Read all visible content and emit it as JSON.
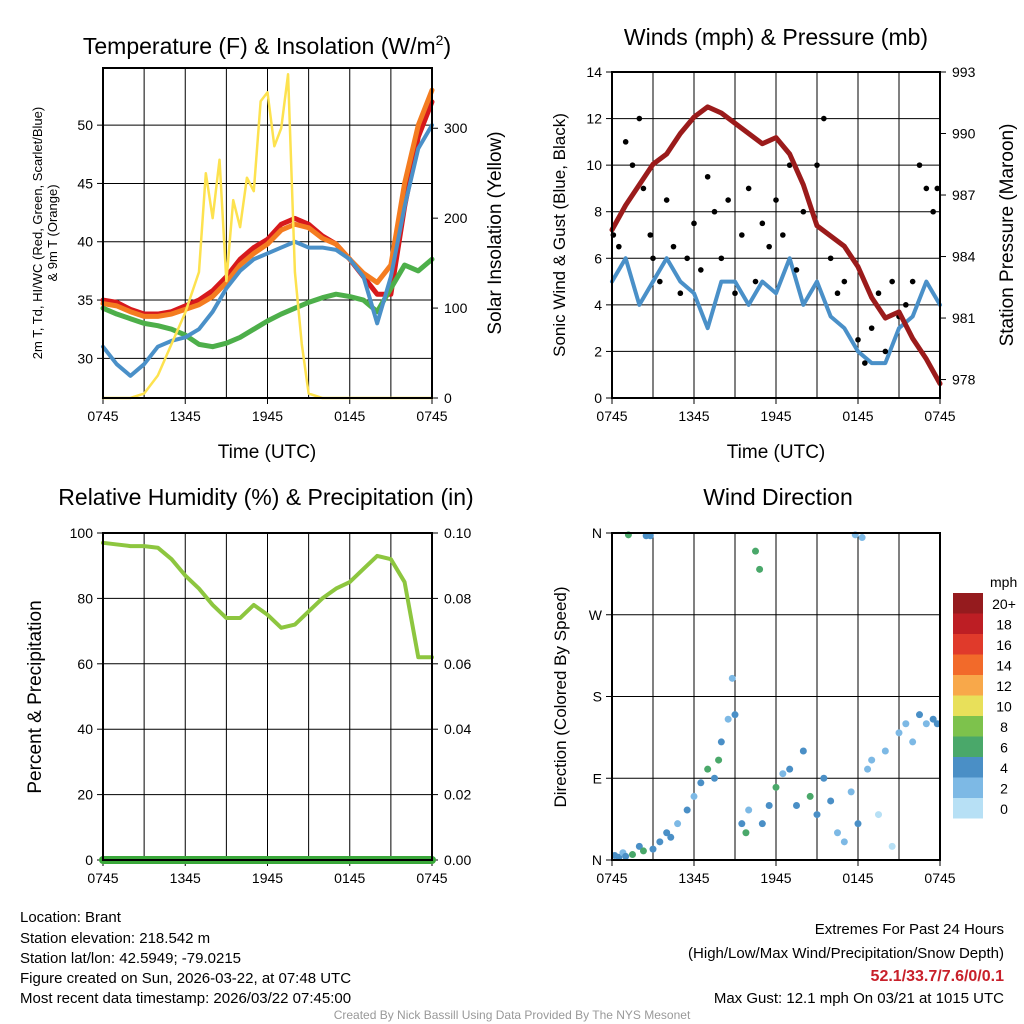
{
  "colors": {
    "red": "#d7191c",
    "orange": "#f47c20",
    "green": "#4daf4a",
    "blue": "#4a90c8",
    "yellow": "#fde24f",
    "maroon": "#9b1b1b",
    "rh": "#8dc63f",
    "precip": "#3aa83a"
  },
  "chart_data": [
    {
      "type": "line",
      "title": "Temperature (F) & Insolation (W/m²)",
      "title_main": "Temperature (F) & Insolation (W/m",
      "title_sup": "2",
      "title_end": ")",
      "xlabel": "Time (UTC)",
      "ylabel_line1": "2m T, Td, HI/WC (Red, Green, Scarlet/Blue)",
      "ylabel_line2": "& 9m T (Orange)",
      "y2label": "Solar Insolation (Yellow)",
      "xticks": [
        "0745",
        "1345",
        "1945",
        "0145",
        "0745"
      ],
      "xlim_hours": [
        0,
        24
      ],
      "ylim": [
        26.6,
        54.9
      ],
      "yticks": [
        30,
        35,
        40,
        45,
        50
      ],
      "y2lim": [
        0,
        367
      ],
      "y2ticks": [
        0,
        100,
        200,
        300
      ],
      "series": [
        {
          "name": "2m T",
          "color": "red",
          "values": [
            35,
            34.8,
            34.2,
            33.8,
            33.8,
            34,
            34.5,
            35,
            35.8,
            37,
            38.5,
            39.5,
            40.2,
            41.5,
            42,
            41.5,
            40.5,
            39.8,
            38.5,
            37,
            35.5,
            35.5,
            43,
            49,
            52
          ]
        },
        {
          "name": "9m T",
          "color": "orange",
          "values": [
            34.7,
            34.5,
            34,
            33.6,
            33.6,
            33.8,
            34.2,
            34.6,
            35.3,
            36.5,
            38,
            39,
            39.8,
            41,
            41.5,
            41.2,
            40.3,
            39.8,
            38.5,
            37.3,
            36.5,
            38,
            45,
            50,
            53
          ]
        },
        {
          "name": "Td",
          "color": "green",
          "values": [
            34.3,
            33.8,
            33.4,
            33,
            32.8,
            32.5,
            32,
            31.2,
            31,
            31.3,
            31.8,
            32.5,
            33.2,
            33.8,
            34.3,
            34.8,
            35.2,
            35.5,
            35.3,
            35,
            34,
            36,
            38,
            37.5,
            38.5
          ]
        },
        {
          "name": "WC",
          "color": "blue",
          "values": [
            31,
            29.5,
            28.5,
            29.5,
            31,
            31.5,
            31.8,
            32.5,
            34,
            36,
            37.5,
            38.5,
            39,
            39.5,
            40,
            39.5,
            39.5,
            39.3,
            38.5,
            37,
            33,
            37,
            43,
            48,
            50
          ]
        },
        {
          "name": "Solar",
          "color": "yellow",
          "axis": "right",
          "x": [
            0,
            2,
            3,
            4,
            5,
            6,
            7,
            7.5,
            8,
            8.5,
            9,
            9.5,
            10,
            10.5,
            11,
            11.5,
            12,
            12.5,
            13,
            13.5,
            14,
            14.5,
            15,
            16,
            24
          ],
          "values": [
            0,
            0,
            5,
            25,
            60,
            95,
            140,
            250,
            200,
            265,
            130,
            220,
            190,
            245,
            230,
            330,
            340,
            280,
            300,
            360,
            140,
            60,
            5,
            0,
            0
          ]
        }
      ]
    },
    {
      "type": "line",
      "title": "Winds (mph) & Pressure (mb)",
      "xlabel": "Time (UTC)",
      "ylabel": "Sonic Wind & Gust (Blue, Black)",
      "y2label": "Station Pressure (Maroon)",
      "xticks": [
        "0745",
        "1345",
        "1945",
        "0145",
        "0745"
      ],
      "ylim": [
        0,
        14
      ],
      "yticks": [
        0,
        2,
        4,
        6,
        8,
        10,
        12,
        14
      ],
      "y2lim": [
        977.1,
        993
      ],
      "y2ticks": [
        978,
        981,
        984,
        987,
        990,
        993
      ],
      "pressure": [
        985.3,
        986.5,
        987.5,
        988.5,
        989,
        990,
        990.8,
        991.3,
        991,
        990.5,
        990,
        989.5,
        989.8,
        989,
        987.5,
        985.5,
        985,
        984.5,
        983.5,
        982,
        981,
        981.3,
        980,
        979,
        977.8
      ],
      "wind": [
        5,
        6,
        4,
        5,
        6,
        5,
        4.5,
        3,
        5,
        5,
        4,
        5,
        4.5,
        6,
        4,
        5,
        3.5,
        3,
        2,
        1.5,
        1.5,
        3,
        3.5,
        5,
        4
      ],
      "gusts": [
        [
          0.1,
          7
        ],
        [
          0.5,
          6.5
        ],
        [
          1,
          11
        ],
        [
          1.5,
          10
        ],
        [
          2,
          12
        ],
        [
          2.3,
          9
        ],
        [
          2.8,
          7
        ],
        [
          3,
          6
        ],
        [
          3.5,
          5
        ],
        [
          4,
          8.5
        ],
        [
          4.5,
          6.5
        ],
        [
          5,
          4.5
        ],
        [
          5.5,
          6
        ],
        [
          6,
          7.5
        ],
        [
          6.5,
          5.5
        ],
        [
          7,
          9.5
        ],
        [
          7.5,
          8
        ],
        [
          8,
          6
        ],
        [
          8.5,
          8.5
        ],
        [
          9,
          4.5
        ],
        [
          9.5,
          7
        ],
        [
          10,
          9
        ],
        [
          10.5,
          5
        ],
        [
          11,
          7.5
        ],
        [
          11.5,
          6.5
        ],
        [
          12,
          8.5
        ],
        [
          12.5,
          7
        ],
        [
          13,
          10
        ],
        [
          13.5,
          5.5
        ],
        [
          14,
          8
        ],
        [
          15,
          10
        ],
        [
          15.5,
          12
        ],
        [
          16,
          6
        ],
        [
          16.5,
          4.5
        ],
        [
          17,
          5
        ],
        [
          18,
          2.5
        ],
        [
          18.5,
          1.5
        ],
        [
          19,
          3
        ],
        [
          19.5,
          4.5
        ],
        [
          20,
          2
        ],
        [
          20.5,
          5
        ],
        [
          21,
          3.5
        ],
        [
          21.5,
          4
        ],
        [
          22,
          5
        ],
        [
          22.5,
          10
        ],
        [
          23,
          9
        ],
        [
          23.5,
          8
        ],
        [
          23.8,
          9
        ]
      ]
    },
    {
      "type": "line",
      "title": "Relative Humidity (%) & Precipitation (in)",
      "ylabel": "Percent & Precipitation",
      "xticks": [
        "0745",
        "1345",
        "1945",
        "0145",
        "0745"
      ],
      "ylim": [
        0,
        100
      ],
      "yticks": [
        0,
        20,
        40,
        60,
        80,
        100
      ],
      "y2lim": [
        0,
        0.1
      ],
      "y2ticks": [
        "0.00",
        "0.02",
        "0.04",
        "0.06",
        "0.08",
        "0.10"
      ],
      "rh": [
        97,
        96.5,
        96,
        96,
        95.5,
        92,
        87,
        83,
        78,
        74,
        74,
        78,
        75,
        71,
        72,
        76,
        80,
        83,
        85,
        89,
        93,
        92,
        85,
        62,
        62
      ],
      "precip": [
        0,
        0,
        0,
        0,
        0,
        0,
        0,
        0,
        0,
        0,
        0,
        0,
        0,
        0,
        0,
        0,
        0,
        0,
        0,
        0,
        0,
        0,
        0,
        0,
        0
      ]
    },
    {
      "type": "scatter",
      "title": "Wind Direction",
      "ylabel": "Direction (Colored By Speed)",
      "xticks": [
        "0745",
        "1345",
        "1945",
        "0145",
        "0745"
      ],
      "yticks": [
        "N",
        "E",
        "S",
        "W",
        "N"
      ],
      "ylim_deg": [
        0,
        360
      ],
      "legend": {
        "title": "mph",
        "labels": [
          "20+",
          "18",
          "16",
          "14",
          "12",
          "10",
          "8",
          "6",
          "4",
          "2",
          "0"
        ],
        "colors": [
          "#951b1e",
          "#bd1e24",
          "#e03a2b",
          "#f26a2a",
          "#f8a84a",
          "#e8e05a",
          "#7dc24c",
          "#4aa86a",
          "#4a8fc6",
          "#7db9e5",
          "#b7e0f5"
        ]
      },
      "points": [
        [
          0.2,
          5,
          4
        ],
        [
          0.5,
          3,
          4
        ],
        [
          0.8,
          8,
          3
        ],
        [
          1,
          4,
          4
        ],
        [
          1.5,
          6,
          6
        ],
        [
          1.2,
          358,
          6
        ],
        [
          2,
          15,
          5
        ],
        [
          2.3,
          10,
          6
        ],
        [
          2.5,
          357,
          4
        ],
        [
          2.8,
          357,
          4
        ],
        [
          3,
          12,
          4
        ],
        [
          3.5,
          20,
          5
        ],
        [
          4,
          30,
          4
        ],
        [
          4.3,
          25,
          5
        ],
        [
          4.8,
          40,
          3
        ],
        [
          5.5,
          55,
          4
        ],
        [
          6,
          70,
          3
        ],
        [
          6.5,
          85,
          5
        ],
        [
          7,
          100,
          6
        ],
        [
          7.5,
          90,
          4
        ],
        [
          7.8,
          110,
          6
        ],
        [
          8,
          130,
          4
        ],
        [
          8.5,
          155,
          3
        ],
        [
          8.8,
          200,
          3
        ],
        [
          9,
          160,
          4
        ],
        [
          9.5,
          40,
          4
        ],
        [
          9.8,
          30,
          6
        ],
        [
          10,
          55,
          3
        ],
        [
          10.5,
          340,
          6
        ],
        [
          10.8,
          320,
          7
        ],
        [
          11,
          40,
          5
        ],
        [
          11.5,
          60,
          4
        ],
        [
          12,
          80,
          6
        ],
        [
          12.5,
          95,
          3
        ],
        [
          13,
          100,
          5
        ],
        [
          13.5,
          60,
          4
        ],
        [
          14,
          120,
          4
        ],
        [
          14.5,
          70,
          6
        ],
        [
          15,
          50,
          4
        ],
        [
          15.5,
          90,
          4
        ],
        [
          16,
          65,
          4
        ],
        [
          16.5,
          30,
          2
        ],
        [
          17,
          20,
          3
        ],
        [
          17.5,
          75,
          3
        ],
        [
          17.8,
          358,
          2
        ],
        [
          18,
          40,
          5
        ],
        [
          18.3,
          355,
          2
        ],
        [
          18.7,
          100,
          2
        ],
        [
          19,
          110,
          3
        ],
        [
          19.5,
          50,
          1
        ],
        [
          20,
          120,
          2
        ],
        [
          20.5,
          15,
          1
        ],
        [
          21,
          140,
          2
        ],
        [
          21.5,
          150,
          2
        ],
        [
          22,
          130,
          3
        ],
        [
          22.5,
          160,
          4
        ],
        [
          23,
          150,
          3
        ],
        [
          23.5,
          155,
          4
        ],
        [
          23.8,
          150,
          4
        ]
      ]
    }
  ],
  "info": {
    "location": "Location: Brant",
    "elevation": "Station elevation: 218.542 m",
    "latlon": "Station lat/lon: 42.5949; -79.0215",
    "created": "Figure created on Sun, 2026-03-22, at 07:48 UTC",
    "recent": "Most recent data timestamp: 2026/03/22 07:45:00"
  },
  "extremes": {
    "title": "Extremes For Past 24 Hours",
    "subtitle": "(High/Low/Max Wind/Precipitation/Snow Depth)",
    "values": "52.1/33.7/7.6/0/0.1",
    "max_gust": "Max Gust: 12.1 mph On 03/21 at 1015 UTC"
  },
  "credit": "Created By Nick Bassill Using Data Provided By The NYS Mesonet"
}
